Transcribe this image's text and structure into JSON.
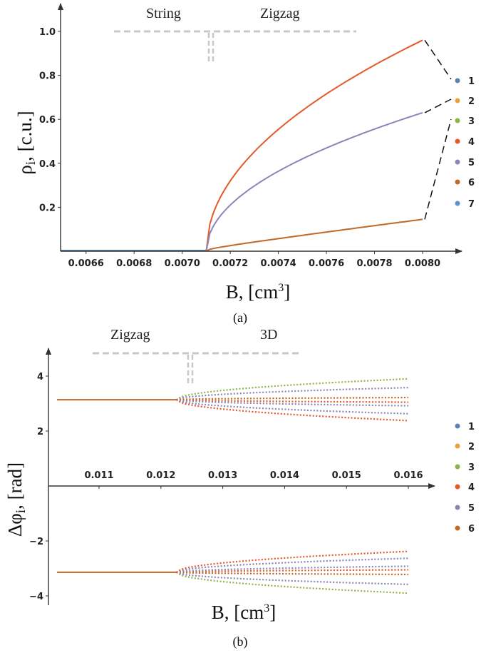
{
  "figure_captions": [
    "(a)",
    "(b)"
  ],
  "legend_colors": [
    "#5b84b1",
    "#e8a33a",
    "#8db44a",
    "#e5582a",
    "#8a86b8",
    "#c06a28",
    "#5e94c8"
  ],
  "chart_data": [
    {
      "type": "scatter",
      "panel": "a",
      "caption": "(a)",
      "phase_labels": [
        "String",
        "Zigzag"
      ],
      "xlabel": "B, [cm3]",
      "ylabel": "ρi, [c.u.]",
      "xlim": [
        0.00646,
        0.00812
      ],
      "ylim": [
        0.0,
        1.02
      ],
      "x_ticks": [
        "0.0066",
        "0.0068",
        "0.0070",
        "0.0072",
        "0.0074",
        "0.0076",
        "0.0078",
        "0.0080"
      ],
      "y_ticks": [
        "0.2",
        "0.4",
        "0.6",
        "0.8",
        "1.0"
      ],
      "legend": [
        "1",
        "2",
        "3",
        "4",
        "5",
        "6",
        "7"
      ],
      "transition_x": 0.0071,
      "series": [
        {
          "name": "4",
          "x": [
            0.0071,
            0.00712,
            0.00716,
            0.0072,
            0.0073,
            0.0074,
            0.0076,
            0.0078,
            0.008
          ],
          "values": [
            0.0,
            0.21,
            0.33,
            0.41,
            0.55,
            0.66,
            0.8,
            0.89,
            0.96
          ]
        },
        {
          "name": "5",
          "x": [
            0.0071,
            0.00712,
            0.00716,
            0.0072,
            0.0073,
            0.0074,
            0.0076,
            0.0078,
            0.008
          ],
          "values": [
            0.0,
            0.12,
            0.2,
            0.25,
            0.35,
            0.42,
            0.52,
            0.58,
            0.63
          ]
        },
        {
          "name": "6",
          "x": [
            0.0071,
            0.00712,
            0.00716,
            0.0072,
            0.0073,
            0.0074,
            0.0076,
            0.0078,
            0.008
          ],
          "values": [
            0.0,
            0.025,
            0.035,
            0.045,
            0.065,
            0.08,
            0.104,
            0.125,
            0.145
          ]
        }
      ]
    },
    {
      "type": "scatter",
      "panel": "b",
      "caption": "(b)",
      "phase_labels": [
        "Zigzag",
        "3D"
      ],
      "xlabel": "B, [cm3]",
      "ylabel": "Δφi, [rad]",
      "xlim": [
        0.01,
        0.0163
      ],
      "ylim": [
        -4.25,
        4.6
      ],
      "x_ticks": [
        "0.011",
        "0.012",
        "0.013",
        "0.014",
        "0.015",
        "0.016"
      ],
      "y_ticks": [
        "-4",
        "-2",
        "2",
        "4"
      ],
      "legend": [
        "1",
        "2",
        "3",
        "4",
        "5",
        "6"
      ],
      "transition_x": 0.01225,
      "branch_start": 3.14,
      "branch_x_end": 0.016,
      "branch_end_values": [
        3.9,
        3.58,
        3.22,
        3.05,
        2.92,
        2.63,
        2.38
      ],
      "branch_colors": [
        "#8db44a",
        "#8a86b8",
        "#c06a28",
        "#e5582a",
        "#8a86b8",
        "#8a86b8",
        "#e5582a"
      ]
    }
  ]
}
